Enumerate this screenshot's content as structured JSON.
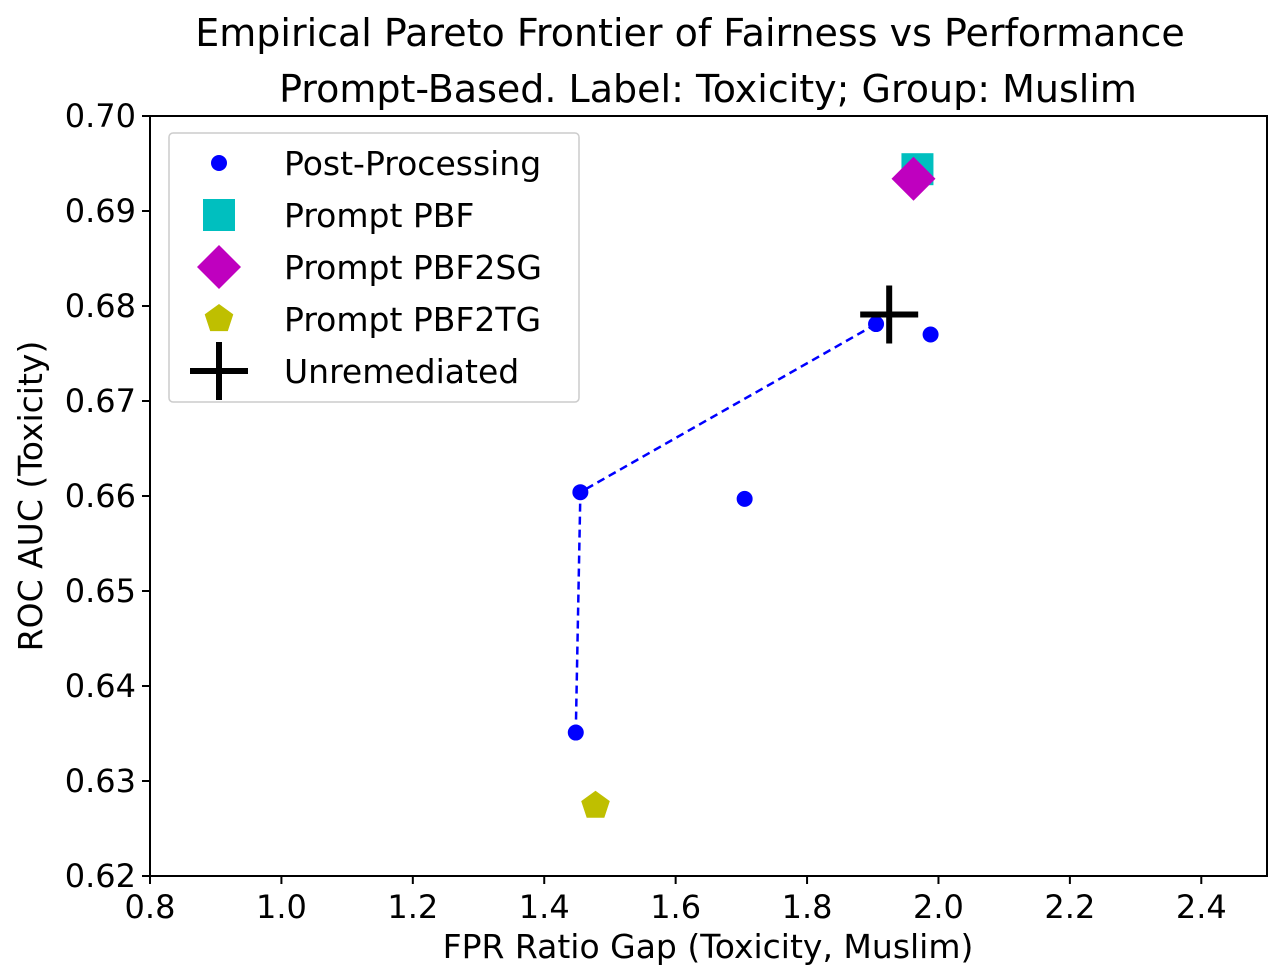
{
  "chart_data": {
    "type": "scatter",
    "title": "Empirical Pareto Frontier of Fairness vs Performance",
    "subtitle": "Prompt-Based. Label: Toxicity; Group: Muslim",
    "xlabel": "FPR Ratio Gap (Toxicity, Muslim)",
    "ylabel": "ROC AUC (Toxicity)",
    "xlim": [
      0.8,
      2.5
    ],
    "ylim": [
      0.62,
      0.7
    ],
    "xticks": [
      0.8,
      1.0,
      1.2,
      1.4,
      1.6,
      1.8,
      2.0,
      2.2,
      2.4
    ],
    "xtick_labels": [
      "0.8",
      "1.0",
      "1.2",
      "1.4",
      "1.6",
      "1.8",
      "2.0",
      "2.2",
      "2.4"
    ],
    "yticks": [
      0.62,
      0.63,
      0.64,
      0.65,
      0.66,
      0.67,
      0.68,
      0.69,
      0.7
    ],
    "ytick_labels": [
      "0.62",
      "0.63",
      "0.64",
      "0.65",
      "0.66",
      "0.67",
      "0.68",
      "0.69",
      "0.70"
    ],
    "grid": false,
    "legend_position": "top-left",
    "series": [
      {
        "name": "Post-Processing",
        "marker": "circle",
        "color": "#0000ff",
        "points": [
          {
            "x": 1.448,
            "y": 0.6351
          },
          {
            "x": 1.455,
            "y": 0.6604
          },
          {
            "x": 1.705,
            "y": 0.6597
          },
          {
            "x": 1.905,
            "y": 0.6781
          },
          {
            "x": 1.988,
            "y": 0.677
          }
        ]
      },
      {
        "name": "Prompt PBF",
        "marker": "square",
        "color": "#00bfbf",
        "points": [
          {
            "x": 1.968,
            "y": 0.6944
          }
        ]
      },
      {
        "name": "Prompt PBF2SG",
        "marker": "diamond",
        "color": "#bf00bf",
        "points": [
          {
            "x": 1.962,
            "y": 0.6934
          }
        ]
      },
      {
        "name": "Prompt PBF2TG",
        "marker": "pentagon",
        "color": "#bfbf00",
        "points": [
          {
            "x": 1.478,
            "y": 0.6274
          }
        ]
      },
      {
        "name": "Unremediated",
        "marker": "plus",
        "color": "#000000",
        "points": [
          {
            "x": 1.925,
            "y": 0.6791
          }
        ]
      }
    ],
    "frontier_line": {
      "color": "#0000ff",
      "style": "dashed",
      "points": [
        {
          "x": 1.448,
          "y": 0.6351
        },
        {
          "x": 1.455,
          "y": 0.6604
        },
        {
          "x": 1.905,
          "y": 0.6781
        }
      ]
    }
  }
}
